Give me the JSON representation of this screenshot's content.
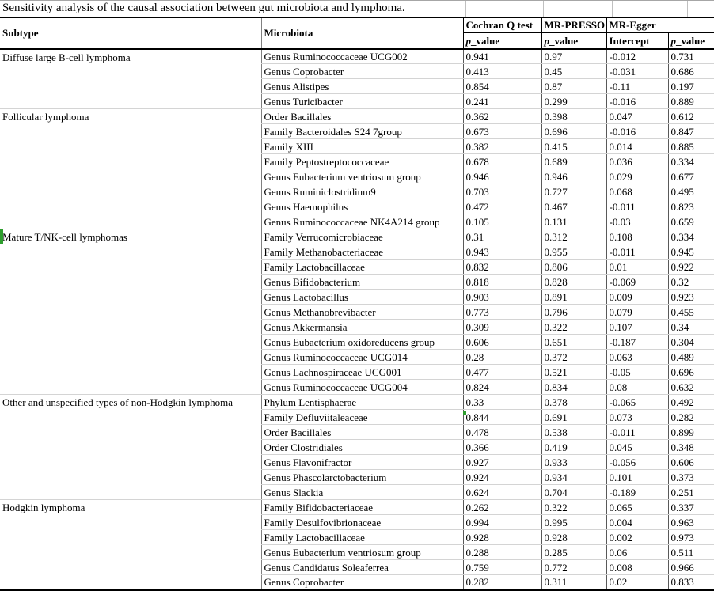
{
  "title": "Sensitivity analysis of the causal association between gut microbiota and lymphoma.",
  "columns": {
    "subtype": "Subtype",
    "microbiota": "Microbiota",
    "cochran": "Cochran Q test",
    "mr_presso": "MR-PRESSO",
    "mr_egger": "MR-Egger",
    "p_value": "p_value",
    "intercept": "Intercept"
  },
  "indicators": {
    "row_marker_color": "#2e9e2e",
    "cell_marker_color": "#2e9e2e"
  },
  "groups": [
    {
      "subtype": "Diffuse large B-cell lymphoma",
      "rows": [
        {
          "microbiota": "Genus Ruminococcaceae UCG002",
          "cochran_p": "0.941",
          "presso_p": "0.97",
          "egger_intercept": "-0.012",
          "egger_p": "0.731"
        },
        {
          "microbiota": "Genus Coprobacter",
          "cochran_p": "0.413",
          "presso_p": "0.45",
          "egger_intercept": "-0.031",
          "egger_p": "0.686"
        },
        {
          "microbiota": "Genus Alistipes",
          "cochran_p": "0.854",
          "presso_p": "0.87",
          "egger_intercept": "-0.11",
          "egger_p": "0.197"
        },
        {
          "microbiota": "Genus Turicibacter",
          "cochran_p": "0.241",
          "presso_p": "0.299",
          "egger_intercept": "-0.016",
          "egger_p": "0.889"
        }
      ]
    },
    {
      "subtype": "Follicular lymphoma",
      "rows": [
        {
          "microbiota": "Order Bacillales",
          "cochran_p": "0.362",
          "presso_p": "0.398",
          "egger_intercept": "0.047",
          "egger_p": "0.612"
        },
        {
          "microbiota": "Family Bacteroidales S24 7group",
          "cochran_p": "0.673",
          "presso_p": "0.696",
          "egger_intercept": "-0.016",
          "egger_p": "0.847"
        },
        {
          "microbiota": "Family XIII",
          "cochran_p": "0.382",
          "presso_p": "0.415",
          "egger_intercept": "0.014",
          "egger_p": "0.885"
        },
        {
          "microbiota": "Family Peptostreptococcaceae",
          "cochran_p": "0.678",
          "presso_p": "0.689",
          "egger_intercept": "0.036",
          "egger_p": "0.334"
        },
        {
          "microbiota": "Genus Eubacterium ventriosum group",
          "cochran_p": "0.946",
          "presso_p": "0.946",
          "egger_intercept": "0.029",
          "egger_p": "0.677"
        },
        {
          "microbiota": "Genus Ruminiclostridium9",
          "cochran_p": "0.703",
          "presso_p": "0.727",
          "egger_intercept": "0.068",
          "egger_p": "0.495"
        },
        {
          "microbiota": "Genus Haemophilus",
          "cochran_p": "0.472",
          "presso_p": "0.467",
          "egger_intercept": "-0.011",
          "egger_p": "0.823"
        },
        {
          "microbiota": "Genus Ruminococcaceae NK4A214 group",
          "cochran_p": "0.105",
          "presso_p": "0.131",
          "egger_intercept": "-0.03",
          "egger_p": "0.659"
        }
      ]
    },
    {
      "subtype": "Mature T/NK-cell lymphomas",
      "rows": [
        {
          "microbiota": "Family Verrucomicrobiaceae",
          "cochran_p": "0.31",
          "presso_p": "0.312",
          "egger_intercept": "0.108",
          "egger_p": "0.334"
        },
        {
          "microbiota": "Family Methanobacteriaceae",
          "cochran_p": "0.943",
          "presso_p": "0.955",
          "egger_intercept": "-0.011",
          "egger_p": "0.945"
        },
        {
          "microbiota": "Family Lactobacillaceae",
          "cochran_p": "0.832",
          "presso_p": "0.806",
          "egger_intercept": "0.01",
          "egger_p": "0.922"
        },
        {
          "microbiota": "Genus Bifidobacterium",
          "cochran_p": "0.818",
          "presso_p": "0.828",
          "egger_intercept": "-0.069",
          "egger_p": "0.32"
        },
        {
          "microbiota": "Genus Lactobacillus",
          "cochran_p": "0.903",
          "presso_p": "0.891",
          "egger_intercept": "0.009",
          "egger_p": "0.923"
        },
        {
          "microbiota": "Genus Methanobrevibacter",
          "cochran_p": "0.773",
          "presso_p": "0.796",
          "egger_intercept": "0.079",
          "egger_p": "0.455"
        },
        {
          "microbiota": "Genus Akkermansia",
          "cochran_p": "0.309",
          "presso_p": "0.322",
          "egger_intercept": "0.107",
          "egger_p": "0.34"
        },
        {
          "microbiota": "Genus Eubacterium oxidoreducens group",
          "cochran_p": "0.606",
          "presso_p": "0.651",
          "egger_intercept": "-0.187",
          "egger_p": "0.304"
        },
        {
          "microbiota": "Genus Ruminococcaceae UCG014",
          "cochran_p": "0.28",
          "presso_p": "0.372",
          "egger_intercept": "0.063",
          "egger_p": "0.489"
        },
        {
          "microbiota": "Genus Lachnospiraceae UCG001",
          "cochran_p": "0.477",
          "presso_p": "0.521",
          "egger_intercept": "-0.05",
          "egger_p": "0.696"
        },
        {
          "microbiota": "Genus Ruminococcaceae UCG004",
          "cochran_p": "0.824",
          "presso_p": "0.834",
          "egger_intercept": "0.08",
          "egger_p": "0.632"
        }
      ]
    },
    {
      "subtype": "Other and unspecified types of non-Hodgkin lymphoma",
      "rows": [
        {
          "microbiota": "Phylum Lentisphaerae",
          "cochran_p": "0.33",
          "presso_p": "0.378",
          "egger_intercept": "-0.065",
          "egger_p": "0.492"
        },
        {
          "microbiota": "Family Defluviitaleaceae",
          "cochran_p": "0.844",
          "presso_p": "0.691",
          "egger_intercept": "0.073",
          "egger_p": "0.282"
        },
        {
          "microbiota": "Order Bacillales",
          "cochran_p": "0.478",
          "presso_p": "0.538",
          "egger_intercept": "-0.011",
          "egger_p": "0.899"
        },
        {
          "microbiota": "Order Clostridiales",
          "cochran_p": "0.366",
          "presso_p": "0.419",
          "egger_intercept": "0.045",
          "egger_p": "0.348"
        },
        {
          "microbiota": "Genus Flavonifractor",
          "cochran_p": "0.927",
          "presso_p": "0.933",
          "egger_intercept": "-0.056",
          "egger_p": "0.606"
        },
        {
          "microbiota": "Genus Phascolarctobacterium",
          "cochran_p": "0.924",
          "presso_p": "0.934",
          "egger_intercept": "0.101",
          "egger_p": "0.373"
        },
        {
          "microbiota": "Genus Slackia",
          "cochran_p": "0.624",
          "presso_p": "0.704",
          "egger_intercept": "-0.189",
          "egger_p": "0.251"
        }
      ]
    },
    {
      "subtype": "Hodgkin lymphoma",
      "rows": [
        {
          "microbiota": "Family Bifidobacteriaceae",
          "cochran_p": "0.262",
          "presso_p": "0.322",
          "egger_intercept": "0.065",
          "egger_p": "0.337"
        },
        {
          "microbiota": "Family Desulfovibrionaceae",
          "cochran_p": "0.994",
          "presso_p": "0.995",
          "egger_intercept": "0.004",
          "egger_p": "0.963"
        },
        {
          "microbiota": "Family Lactobacillaceae",
          "cochran_p": "0.928",
          "presso_p": "0.928",
          "egger_intercept": "0.002",
          "egger_p": "0.973"
        },
        {
          "microbiota": "Genus Eubacterium ventriosum group",
          "cochran_p": "0.288",
          "presso_p": "0.285",
          "egger_intercept": "0.06",
          "egger_p": "0.511"
        },
        {
          "microbiota": "Genus Candidatus Soleaferrea",
          "cochran_p": "0.759",
          "presso_p": "0.772",
          "egger_intercept": "0.008",
          "egger_p": "0.966"
        },
        {
          "microbiota": "Genus Coprobacter",
          "cochran_p": "0.282",
          "presso_p": "0.311",
          "egger_intercept": "0.02",
          "egger_p": "0.833"
        }
      ]
    }
  ]
}
